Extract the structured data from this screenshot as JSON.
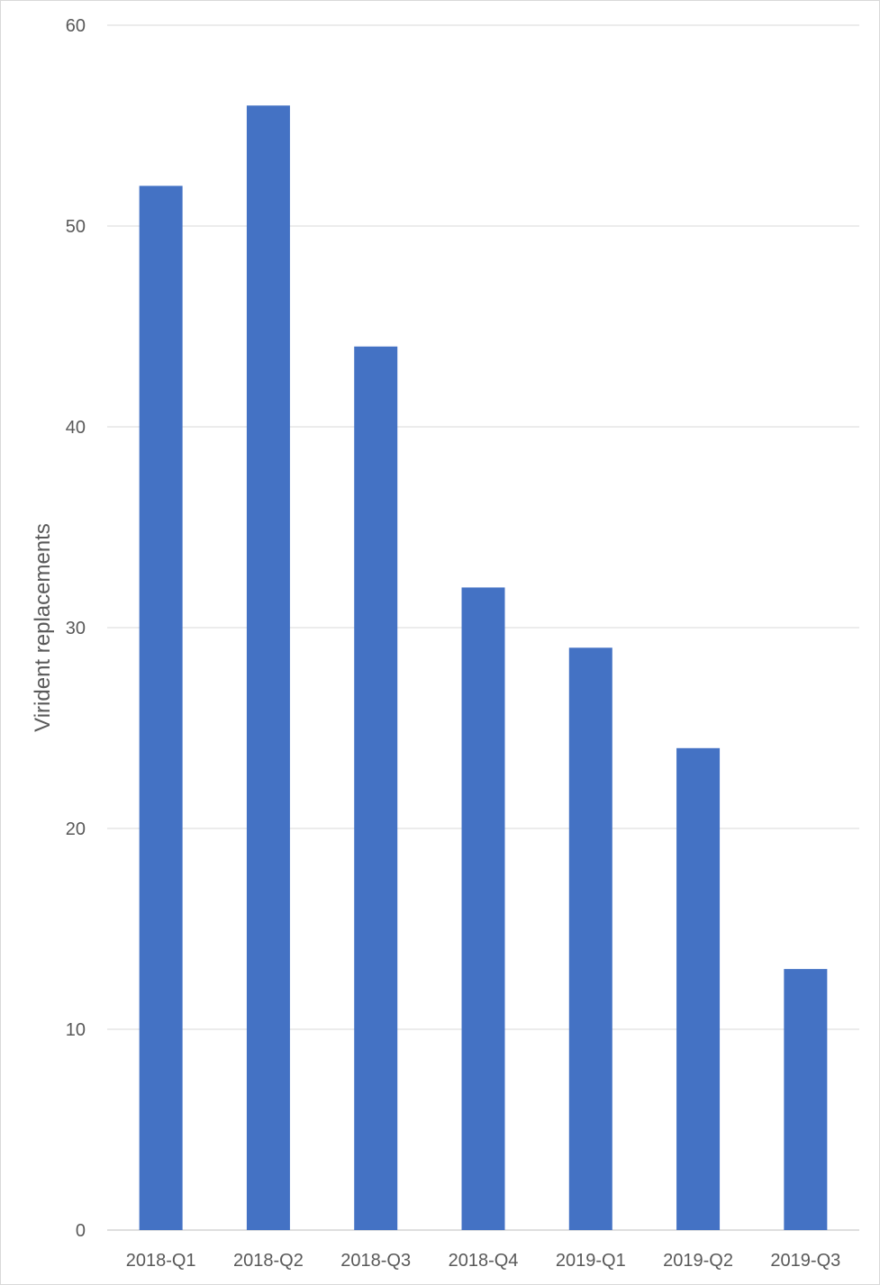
{
  "chart_data": {
    "type": "bar",
    "categories": [
      "2018-Q1",
      "2018-Q2",
      "2018-Q3",
      "2018-Q4",
      "2019-Q1",
      "2019-Q2",
      "2019-Q3"
    ],
    "values": [
      52,
      56,
      44,
      32,
      29,
      24,
      13
    ],
    "title": "",
    "xlabel": "",
    "ylabel": "Virident replacements",
    "ylim": [
      0,
      60
    ],
    "yticks": [
      0,
      10,
      20,
      30,
      40,
      50,
      60
    ],
    "grid": true,
    "bar_color": "#4472C4"
  }
}
